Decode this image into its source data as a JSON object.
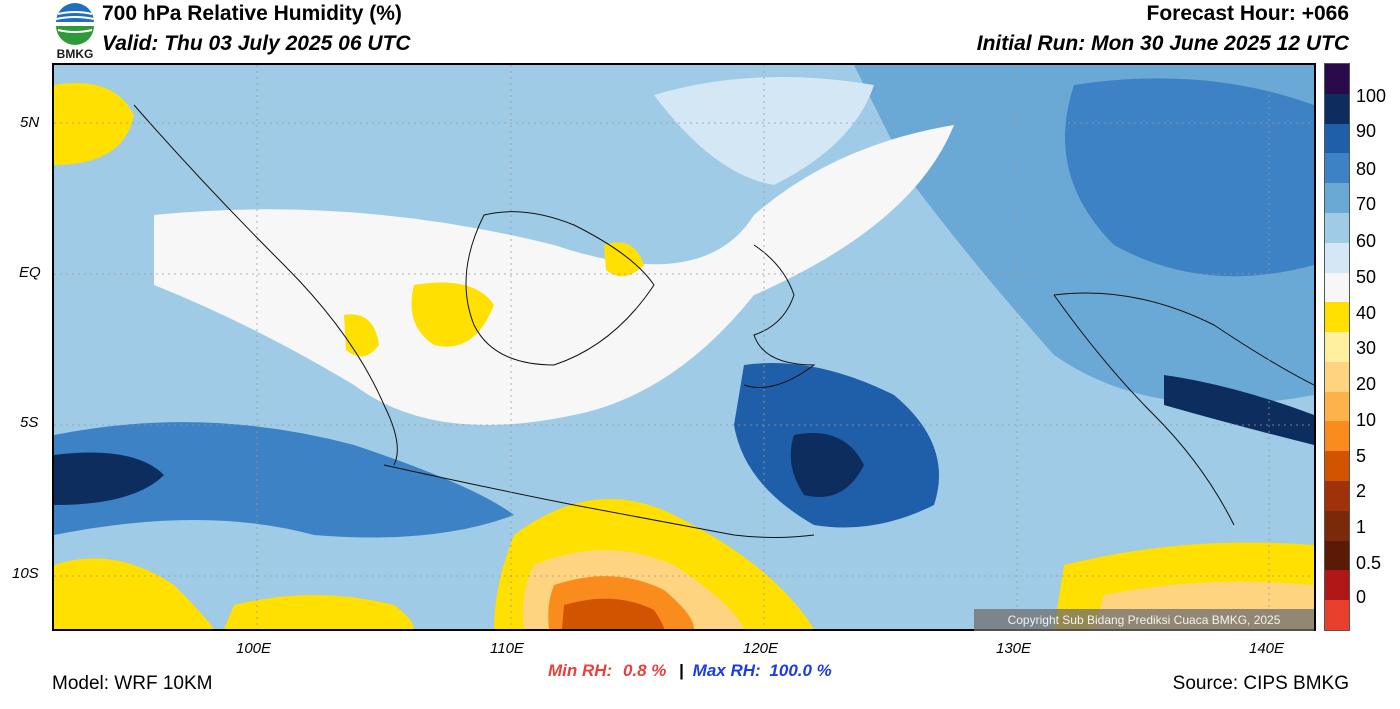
{
  "header": {
    "title": "700 hPa Relative Humidity (%)",
    "valid": "Valid: Thu 03 July 2025 06 UTC",
    "forecast_hour": "Forecast Hour: +066",
    "initial_run": "Initial Run: Mon 30 June 2025 12 UTC"
  },
  "logo": {
    "text": "BMKG"
  },
  "axes": {
    "lat_labels": [
      "5N",
      "EQ",
      "5S",
      "10S"
    ],
    "lon_labels": [
      "100E",
      "110E",
      "120E",
      "130E",
      "140E"
    ]
  },
  "colorbar": {
    "labels": [
      "100",
      "90",
      "80",
      "70",
      "60",
      "50",
      "40",
      "30",
      "20",
      "10",
      "5",
      "2",
      "1",
      "0.5",
      "0"
    ],
    "colors": [
      "#2a0a4a",
      "#0c2d5e",
      "#1f5ea8",
      "#3d82c4",
      "#6aa9d6",
      "#9fcbe6",
      "#d4e7f4",
      "#f7f7f7",
      "#ffe000",
      "#fff0a0",
      "#ffd480",
      "#ffb24a",
      "#fa8c1e",
      "#d35400",
      "#a0320a",
      "#7a2a08",
      "#5a1a05",
      "#b01818",
      "#e8402c"
    ]
  },
  "copyright": "Copyright Sub Bidang Prediksi Cuaca BMKG, 2025",
  "footer": {
    "model": "Model: WRF 10KM",
    "source": "Source: CIPS BMKG",
    "min_rh_label": "Min RH:",
    "min_rh_value": "0.8 %",
    "separator": "|",
    "max_rh_label": "Max RH:",
    "max_rh_value": "100.0 %"
  }
}
